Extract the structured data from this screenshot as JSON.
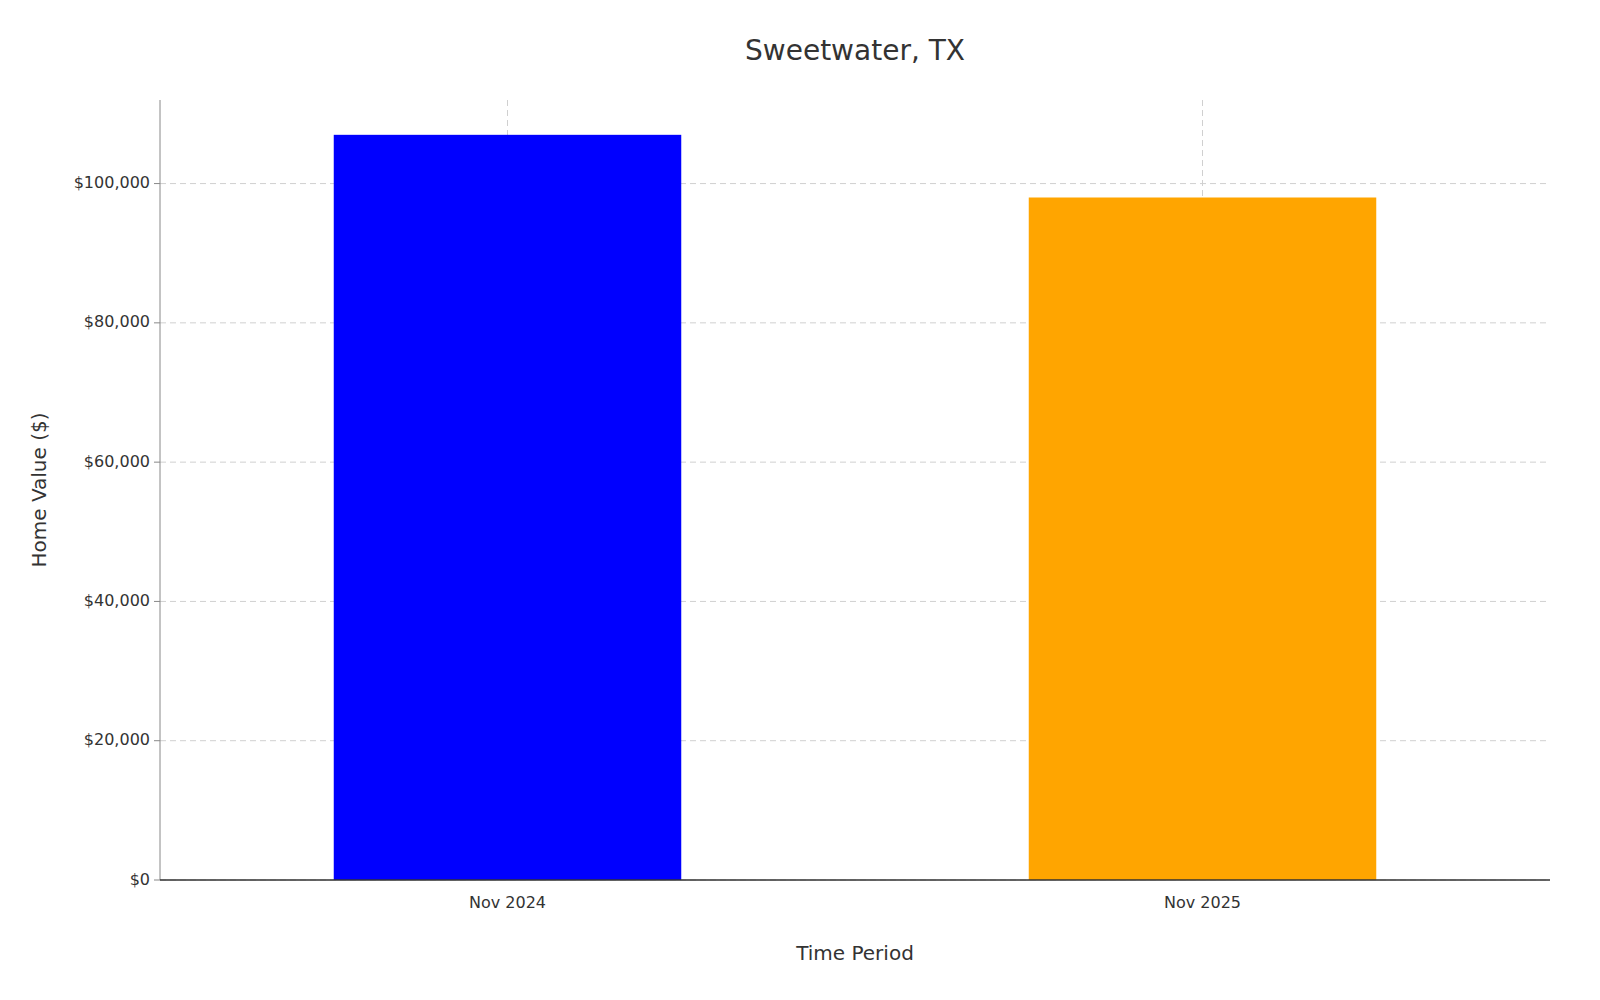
{
  "chart_data": {
    "type": "bar",
    "title": "Sweetwater, TX",
    "xlabel": "Time Period",
    "ylabel": "Home Value ($)",
    "categories": [
      "Nov 2024",
      "Nov 2025"
    ],
    "values": [
      107000,
      98000
    ],
    "colors": [
      "#0000FF",
      "#FFA500"
    ],
    "ylim": [
      0,
      112000
    ],
    "yticks": [
      {
        "value": 0,
        "label": "$0"
      },
      {
        "value": 20000,
        "label": "$20,000"
      },
      {
        "value": 40000,
        "label": "$40,000"
      },
      {
        "value": 60000,
        "label": "$60,000"
      },
      {
        "value": 80000,
        "label": "$80,000"
      },
      {
        "value": 100000,
        "label": "$100,000"
      }
    ],
    "grid": true
  }
}
